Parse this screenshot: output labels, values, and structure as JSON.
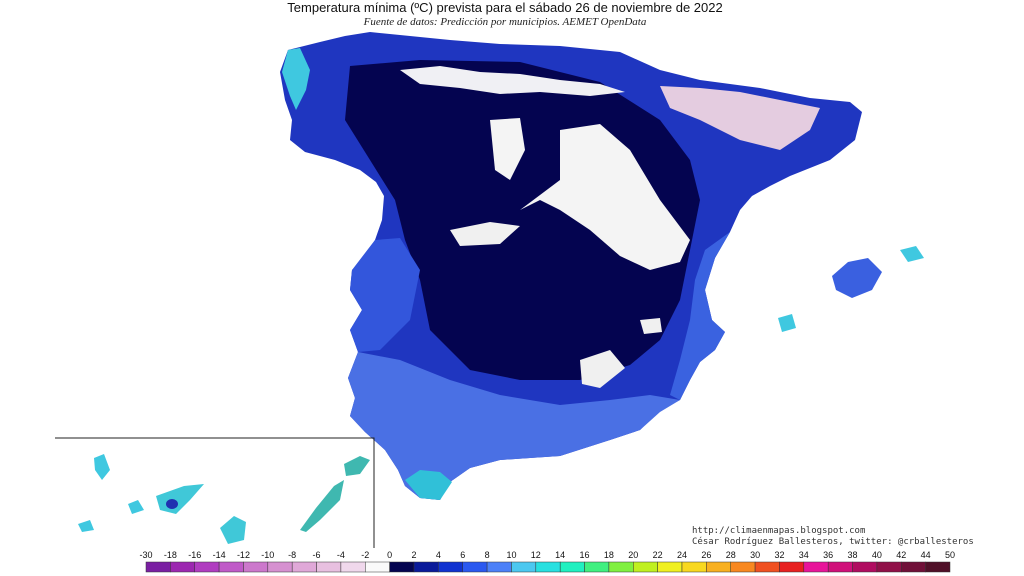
{
  "header": {
    "title": "Temperatura mínima (ºC) prevista para el sábado 26 de noviembre de 2022",
    "subtitle": "Fuente de datos: Predicción por municipios. AEMET OpenData"
  },
  "credits": {
    "url": "http://climaenmapas.blogspot.com",
    "author": "César Rodríguez Ballesteros, twitter: @crballesteros"
  },
  "legend": {
    "labels": [
      "-30",
      "-18",
      "-16",
      "-14",
      "-12",
      "-10",
      "-8",
      "-6",
      "-4",
      "-2",
      "0",
      "2",
      "4",
      "6",
      "8",
      "10",
      "12",
      "14",
      "16",
      "18",
      "20",
      "22",
      "24",
      "26",
      "28",
      "30",
      "32",
      "34",
      "36",
      "38",
      "40",
      "42",
      "44",
      "50"
    ],
    "colors": [
      "#7a1fa2",
      "#9c27b0",
      "#b03cc0",
      "#c05ac8",
      "#cc78cc",
      "#d690d0",
      "#e0a8d8",
      "#e8c0e0",
      "#f0d8ec",
      "#fafafa",
      "#040450",
      "#0a1a9a",
      "#1032d0",
      "#2a58f0",
      "#4c80f8",
      "#4cc8f0",
      "#28e0e0",
      "#20f0c0",
      "#40f080",
      "#80f040",
      "#c0f020",
      "#f0f020",
      "#f8d820",
      "#f8b020",
      "#f88820",
      "#f05020",
      "#e82020",
      "#e8149a",
      "#d0107a",
      "#b00c60",
      "#901048",
      "#701038",
      "#501028"
    ]
  },
  "map": {
    "colors": {
      "very_cold": "#040450",
      "cold": "#0d1c9e",
      "mild": "#2f4fd8",
      "warm": "#5b86ec",
      "coast": "#3fc8e0",
      "frost": "#f2f2f2",
      "deep_frost": "#d8b8d8"
    }
  }
}
